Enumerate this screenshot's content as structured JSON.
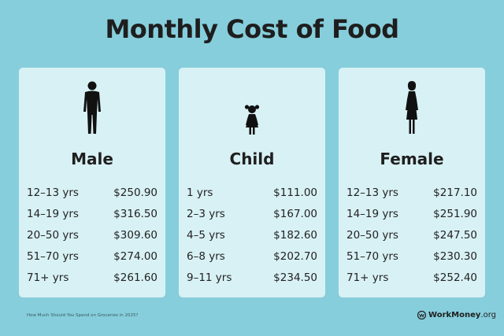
{
  "title": "Monthly Cost of Food",
  "cards": [
    {
      "label": "Male",
      "icon": "man-silhouette-icon",
      "rows": [
        {
          "age": "12–13 yrs",
          "cost": "$250.90"
        },
        {
          "age": "14–19 yrs",
          "cost": "$316.50"
        },
        {
          "age": "20–50 yrs",
          "cost": "$309.60"
        },
        {
          "age": "51–70 yrs",
          "cost": "$274.00"
        },
        {
          "age": "71+ yrs",
          "cost": "$261.60"
        }
      ]
    },
    {
      "label": "Child",
      "icon": "child-silhouette-icon",
      "rows": [
        {
          "age": "1 yrs",
          "cost": "$111.00"
        },
        {
          "age": "2–3 yrs",
          "cost": "$167.00"
        },
        {
          "age": "4–5 yrs",
          "cost": "$182.60"
        },
        {
          "age": "6–8 yrs",
          "cost": "$202.70"
        },
        {
          "age": "9–11 yrs",
          "cost": "$234.50"
        }
      ]
    },
    {
      "label": "Female",
      "icon": "woman-silhouette-icon",
      "rows": [
        {
          "age": "12–13 yrs",
          "cost": "$217.10"
        },
        {
          "age": "14–19 yrs",
          "cost": "$251.90"
        },
        {
          "age": "20–50 yrs",
          "cost": "$247.50"
        },
        {
          "age": "51–70 yrs",
          "cost": "$230.30"
        },
        {
          "age": "71+ yrs",
          "cost": "$252.40"
        }
      ]
    }
  ],
  "footer": {
    "source": "How Much Should You Spend on Groceries in 2025?",
    "brand": "WorkMoney",
    "brand_tld": ".org",
    "logo_icon": "workmoney-logo-icon"
  },
  "colors": {
    "background": "#86cedc",
    "card": "#d8f1f5",
    "text": "#1f1f1f"
  }
}
